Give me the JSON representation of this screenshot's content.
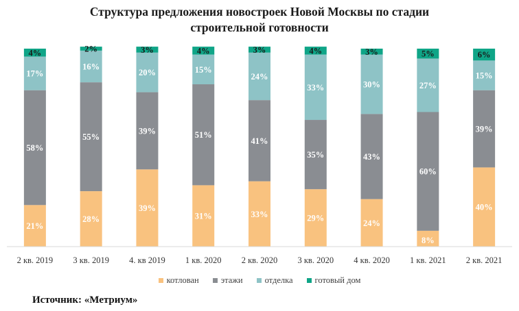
{
  "chart_data": {
    "type": "bar",
    "stacked": true,
    "title": "Структура  предложения новостроек Новой  Москвы по стадии\nстроительной  готовности",
    "categories": [
      "2 кв. 2019",
      "3 кв. 2019",
      "4. кв 2019",
      "1 кв. 2020",
      "2 кв. 2020",
      "3 кв. 2020",
      "4 кв. 2020",
      "1 кв. 2021",
      "2 кв. 2021"
    ],
    "series": [
      {
        "name": "котлован",
        "color": "#F9C27F",
        "values": [
          21,
          28,
          39,
          31,
          33,
          29,
          24,
          8,
          40
        ],
        "labels": [
          "21%",
          "28%",
          "39%",
          "31%",
          "33%",
          "29%",
          "24%",
          "8%",
          "40%"
        ]
      },
      {
        "name": "этажи",
        "color": "#8A8D92",
        "values": [
          58,
          55,
          39,
          51,
          41,
          35,
          43,
          60,
          39
        ],
        "labels": [
          "58%",
          "55%",
          "39%",
          "51%",
          "41%",
          "35%",
          "43%",
          "60%",
          "39%"
        ]
      },
      {
        "name": "отделка",
        "color": "#8EC3C6",
        "values": [
          17,
          16,
          20,
          15,
          24,
          33,
          30,
          27,
          15
        ],
        "labels": [
          "17%",
          "16%",
          "20%",
          "15%",
          "24%",
          "33%",
          "30%",
          "27%",
          "15%"
        ]
      },
      {
        "name": "готовый дом",
        "color": "#0FA587",
        "values": [
          4,
          2,
          3,
          4,
          3,
          4,
          3,
          5,
          6
        ],
        "labels": [
          "4%",
          "2%",
          "3%",
          "4%",
          "3%",
          "4%",
          "3%",
          "5%",
          "6%"
        ]
      }
    ],
    "ylim": [
      0,
      100
    ],
    "legend": "bottom",
    "grid": false
  },
  "source": "Источник: «Метриум»"
}
